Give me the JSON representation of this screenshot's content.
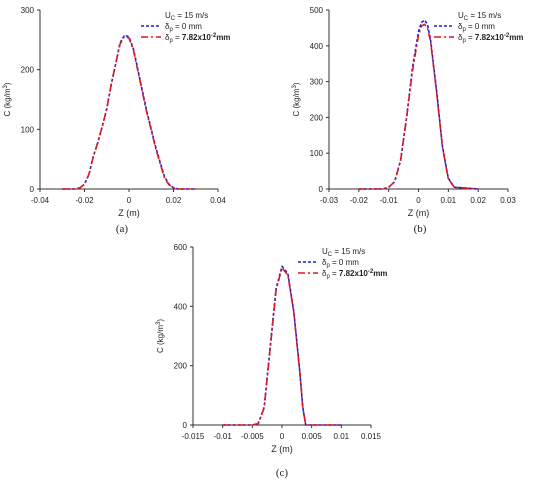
{
  "figure": {
    "legend_title": "U",
    "legend_title_sub": "C",
    "legend_title_rest": " = 15 m/s",
    "legend_symbol": "δ",
    "legend_symbol_sub": "p",
    "legend_eq": " = ",
    "colors": {
      "blue": "#1a22d6",
      "red": "#e0151b"
    }
  },
  "chart_data": [
    {
      "id": "a",
      "type": "line",
      "caption": "(a)",
      "xlabel": "Z (m)",
      "ylabel": "C (kg/m",
      "ylabel_sup": "3",
      "ylabel_close": ")",
      "xlim": [
        -0.04,
        0.04
      ],
      "ylim": [
        0,
        300
      ],
      "xticks": [
        -0.04,
        -0.02,
        0,
        0.02,
        0.04
      ],
      "xtick_labels": [
        "-0.04",
        "-0.02",
        "0",
        "0.02",
        "0.04"
      ],
      "yticks": [
        0,
        100,
        200,
        300
      ],
      "ytick_labels": [
        "0",
        "100",
        "200",
        "300"
      ],
      "legend_title": "U_C = 15 m/s",
      "series": [
        {
          "name": "δp = 0 mm",
          "legend_value": "0 mm",
          "color": "#1a22d6",
          "dash": "dot",
          "x": [
            -0.03,
            -0.024,
            -0.022,
            -0.02,
            -0.018,
            -0.016,
            -0.014,
            -0.012,
            -0.01,
            -0.008,
            -0.006,
            -0.004,
            -0.002,
            0,
            0.002,
            0.004,
            0.006,
            0.008,
            0.01,
            0.012,
            0.014,
            0.016,
            0.018,
            0.02,
            0.022,
            0.024,
            0.03
          ],
          "y": [
            0,
            0,
            2,
            8,
            25,
            55,
            78,
            105,
            135,
            175,
            210,
            245,
            258,
            255,
            235,
            200,
            165,
            130,
            100,
            70,
            45,
            20,
            8,
            2,
            0,
            0,
            0
          ]
        },
        {
          "name": "δp = 7.82x10-2mm",
          "legend_value": "7.82x10",
          "legend_value_sup": "-2",
          "legend_value_rest": "mm",
          "color": "#e0151b",
          "dash": "dashdot",
          "x": [
            -0.03,
            -0.024,
            -0.022,
            -0.02,
            -0.018,
            -0.016,
            -0.014,
            -0.012,
            -0.01,
            -0.008,
            -0.006,
            -0.004,
            -0.002,
            0,
            0.002,
            0.004,
            0.006,
            0.008,
            0.01,
            0.012,
            0.014,
            0.016,
            0.018,
            0.02,
            0.022,
            0.024,
            0.03
          ],
          "y": [
            0,
            0,
            2,
            8,
            25,
            55,
            78,
            105,
            135,
            175,
            210,
            243,
            256,
            253,
            233,
            198,
            163,
            128,
            98,
            68,
            43,
            18,
            7,
            2,
            0,
            0,
            0
          ]
        }
      ]
    },
    {
      "id": "b",
      "type": "line",
      "caption": "(b)",
      "xlabel": "Z (m)",
      "ylabel": "C (kg/m",
      "ylabel_sup": "3",
      "ylabel_close": ")",
      "xlim": [
        -0.03,
        0.03
      ],
      "ylim": [
        0,
        500
      ],
      "xticks": [
        -0.03,
        -0.02,
        -0.01,
        0,
        0.01,
        0.02,
        0.03
      ],
      "xtick_labels": [
        "-0.03",
        "-0.02",
        "-0.01",
        "0",
        "0.01",
        "0.02",
        "0.03"
      ],
      "yticks": [
        0,
        100,
        200,
        300,
        400,
        500
      ],
      "ytick_labels": [
        "0",
        "100",
        "200",
        "300",
        "400",
        "500"
      ],
      "legend_title": "U_C = 15 m/s",
      "series": [
        {
          "name": "δp = 0 mm",
          "legend_value": "0 mm",
          "color": "#1a22d6",
          "dash": "dot",
          "x": [
            -0.02,
            -0.012,
            -0.01,
            -0.008,
            -0.006,
            -0.004,
            -0.002,
            0,
            0.001,
            0.002,
            0.003,
            0.004,
            0.006,
            0.008,
            0.01,
            0.012,
            0.02
          ],
          "y": [
            0,
            0,
            5,
            20,
            80,
            200,
            340,
            440,
            465,
            472,
            460,
            420,
            280,
            120,
            30,
            5,
            0
          ]
        },
        {
          "name": "δp = 7.82x10-2mm",
          "legend_value": "7.82x10",
          "legend_value_sup": "-2",
          "legend_value_rest": "mm",
          "color": "#e0151b",
          "dash": "dashdot",
          "x": [
            -0.02,
            -0.012,
            -0.01,
            -0.008,
            -0.006,
            -0.004,
            -0.002,
            0,
            0.001,
            0.002,
            0.003,
            0.004,
            0.006,
            0.008,
            0.01,
            0.012,
            0.02
          ],
          "y": [
            0,
            0,
            5,
            20,
            80,
            200,
            330,
            430,
            455,
            460,
            450,
            415,
            275,
            118,
            28,
            5,
            0
          ]
        }
      ]
    },
    {
      "id": "c",
      "type": "line",
      "caption": "(c)",
      "xlabel": "Z (m)",
      "ylabel": "C (kg/m",
      "ylabel_sup": "3",
      "ylabel_close": ")",
      "xlim": [
        -0.015,
        0.015
      ],
      "ylim": [
        0,
        600
      ],
      "xticks": [
        -0.015,
        -0.01,
        -0.005,
        0,
        0.005,
        0.01,
        0.015
      ],
      "xtick_labels": [
        "-0.015",
        "-0.01",
        "-0.005",
        "0",
        "0.005",
        "0.01",
        "0.015"
      ],
      "yticks": [
        0,
        200,
        400,
        600
      ],
      "ytick_labels": [
        "0",
        "200",
        "400",
        "600"
      ],
      "legend_title": "U_C = 15 m/s",
      "series": [
        {
          "name": "δp = 0 mm",
          "legend_value": "0 mm",
          "color": "#1a22d6",
          "dash": "dot",
          "x": [
            -0.01,
            -0.005,
            -0.004,
            -0.003,
            -0.002,
            -0.001,
            0,
            0.001,
            0.002,
            0.003,
            0.0035,
            0.004,
            0.01
          ],
          "y": [
            0,
            0,
            5,
            60,
            260,
            460,
            535,
            510,
            380,
            180,
            60,
            0,
            0
          ]
        },
        {
          "name": "δp = 7.82x10-2mm",
          "legend_value": "7.82x10",
          "legend_value_sup": "-2",
          "legend_value_rest": "mm",
          "color": "#e0151b",
          "dash": "dashdot",
          "x": [
            -0.01,
            -0.005,
            -0.004,
            -0.003,
            -0.002,
            -0.001,
            0,
            0.001,
            0.002,
            0.003,
            0.0035,
            0.004,
            0.01
          ],
          "y": [
            0,
            0,
            5,
            58,
            255,
            455,
            530,
            505,
            376,
            178,
            58,
            0,
            0
          ]
        }
      ]
    }
  ]
}
